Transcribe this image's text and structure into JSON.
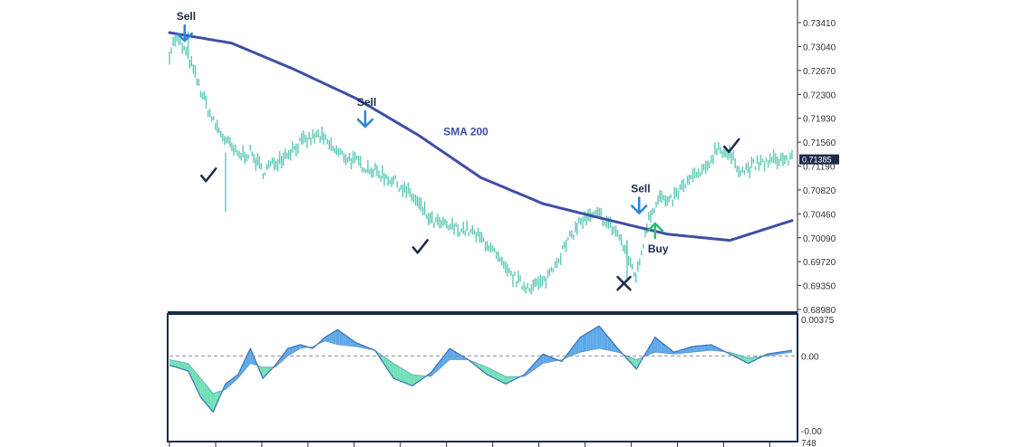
{
  "chart_data": [
    {
      "type": "candlestick",
      "series": [
        {
          "name": "SMA 200",
          "x": [
            0,
            10,
            20,
            30,
            40,
            50,
            60,
            70,
            80,
            90,
            100
          ],
          "y": [
            0.7343,
            0.7326,
            0.7284,
            0.7237,
            0.7178,
            0.711,
            0.7068,
            0.7043,
            0.7019,
            0.7009,
            0.7041
          ]
        }
      ],
      "price_path": {
        "x": [
          0,
          1,
          3,
          5,
          7,
          9,
          11,
          13,
          15,
          17,
          19,
          21,
          24,
          27,
          30,
          33,
          36,
          39,
          42,
          45,
          48,
          51,
          54,
          57,
          60,
          63,
          66,
          69,
          72,
          75,
          77,
          79,
          80,
          82,
          84,
          86,
          88,
          90,
          92,
          94,
          96,
          98,
          100
        ],
        "y": [
          0.731,
          0.7335,
          0.7305,
          0.725,
          0.72,
          0.717,
          0.7145,
          0.715,
          0.712,
          0.7135,
          0.715,
          0.7165,
          0.7178,
          0.715,
          0.7135,
          0.712,
          0.7105,
          0.708,
          0.704,
          0.703,
          0.7025,
          0.7005,
          0.696,
          0.6935,
          0.694,
          0.699,
          0.704,
          0.705,
          0.702,
          0.695,
          0.705,
          0.708,
          0.7065,
          0.709,
          0.711,
          0.712,
          0.716,
          0.7145,
          0.712,
          0.713,
          0.7135,
          0.714,
          0.7139
        ]
      },
      "y_ticks": [
        "0.73410",
        "0.73040",
        "0.72670",
        "0.72300",
        "0.71930",
        "0.71560",
        "0.71190",
        "0.70820",
        "0.70460",
        "0.70090",
        "0.69720",
        "0.69350",
        "0.68980"
      ],
      "ylim": [
        0.6898,
        0.7359
      ],
      "last_price_label": "0.71385",
      "annotations": [
        {
          "text": "Sell",
          "x": 2,
          "y": 0.734,
          "kind": "sell-arrow"
        },
        {
          "text": "Sell",
          "x": 31,
          "y": 0.7202,
          "kind": "sell-arrow"
        },
        {
          "text": "SMA 200",
          "x": 44,
          "y": 0.7178,
          "kind": "label"
        },
        {
          "text": "Sell",
          "x": 75,
          "y": 0.7063,
          "kind": "sell-arrow"
        },
        {
          "text": "Buy",
          "x": 78,
          "y": 0.7007,
          "kind": "buy-arrow"
        },
        {
          "text": "",
          "x": 6,
          "y": 0.711,
          "kind": "check"
        },
        {
          "text": "",
          "x": 40,
          "y": 0.6995,
          "kind": "check"
        },
        {
          "text": "",
          "x": 90,
          "y": 0.7157,
          "kind": "check"
        },
        {
          "text": "",
          "x": 73,
          "y": 0.694,
          "kind": "cross"
        }
      ],
      "colors": {
        "candle": "#5ec9b5",
        "sma": "#3f4ea4",
        "sell": "#2a86d8",
        "buy": "#22c27c",
        "mark": "#1b2a4a"
      }
    },
    {
      "type": "area",
      "series": [
        {
          "name": "oscillator",
          "x": [
            0,
            3,
            5,
            7,
            9,
            11,
            13,
            15,
            17,
            19,
            21,
            23,
            25,
            27,
            30,
            33,
            36,
            39,
            42,
            45,
            48,
            51,
            54,
            57,
            60,
            63,
            66,
            69,
            72,
            75,
            78,
            81,
            84,
            87,
            90,
            93,
            96,
            100
          ],
          "y": [
            -0.0005,
            -0.0008,
            -0.0022,
            -0.003,
            -0.0015,
            -0.001,
            0.0004,
            -0.0012,
            -0.0005,
            0.0004,
            0.0006,
            0.0004,
            0.001,
            0.0014,
            0.0007,
            0.0003,
            -0.0012,
            -0.0016,
            -0.0009,
            0.0004,
            -0.0002,
            -0.001,
            -0.0015,
            -0.001,
            0.0001,
            -0.0003,
            0.001,
            0.0016,
            0.0004,
            -0.0007,
            0.001,
            0.0002,
            0.0005,
            0.0006,
            0.0001,
            -0.0004,
            0.0001,
            0.0003
          ]
        },
        {
          "name": "signal",
          "x": [
            0,
            3,
            5,
            7,
            9,
            11,
            13,
            15,
            17,
            19,
            21,
            23,
            25,
            27,
            30,
            33,
            36,
            39,
            42,
            45,
            48,
            51,
            54,
            57,
            60,
            63,
            66,
            69,
            72,
            75,
            78,
            81,
            84,
            87,
            90,
            93,
            96,
            100
          ],
          "y": [
            -0.0002,
            -0.0004,
            -0.0012,
            -0.002,
            -0.0018,
            -0.0012,
            -0.0004,
            -0.0006,
            -0.0006,
            0.0,
            0.0004,
            0.0005,
            0.0008,
            0.0006,
            0.0005,
            0.0003,
            -0.0004,
            -0.001,
            -0.0011,
            -0.0002,
            -0.0002,
            -0.0006,
            -0.0011,
            -0.0011,
            -0.0004,
            -0.0002,
            0.0002,
            0.0004,
            0.0002,
            -0.0002,
            0.0002,
            0.0001,
            0.0002,
            0.0003,
            0.0002,
            -0.0001,
            0.0,
            0.0002
          ]
        }
      ],
      "y_ticks": [
        "0.00375",
        "0.00",
        "-0.00"
      ],
      "ylim": [
        -0.004,
        0.002
      ],
      "x_tick_count": 14,
      "corner_label": "748",
      "colors": {
        "positive": "#5ba8e8",
        "negative": "#6fe0b6",
        "line": "#3a6fb8",
        "zero": "#8a8fa3"
      }
    }
  ]
}
